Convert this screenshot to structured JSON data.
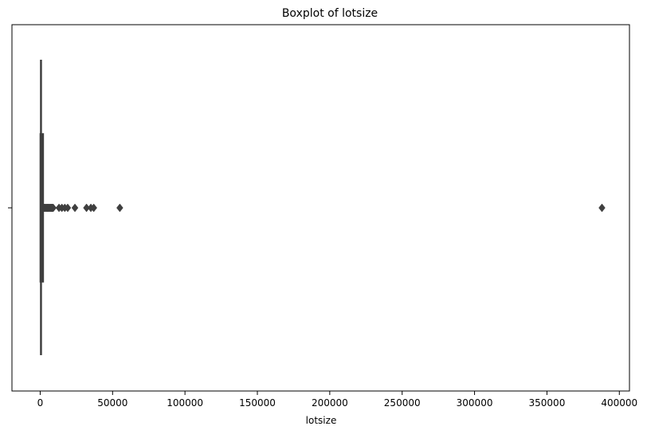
{
  "chart_data": {
    "type": "boxplot",
    "title": "Boxplot of lotsize",
    "xlabel": "lotsize",
    "ylabel": "",
    "xlim": [
      -19500,
      407000
    ],
    "x_ticks": [
      0,
      50000,
      100000,
      150000,
      200000,
      250000,
      300000,
      350000,
      400000
    ],
    "x_tick_labels": [
      "0",
      "50000",
      "100000",
      "150000",
      "200000",
      "250000",
      "300000",
      "350000",
      "400000"
    ],
    "y_tick_labels": [
      ""
    ],
    "grid": false,
    "box": {
      "whisker_low": 0,
      "q1": 0,
      "median": 500,
      "q3": 1500,
      "whisker_high": 1500
    },
    "outliers": [
      2000,
      2500,
      3000,
      3500,
      4000,
      4500,
      5000,
      5500,
      6000,
      6500,
      7000,
      7500,
      8000,
      8500,
      9000,
      13000,
      15000,
      17000,
      19000,
      24000,
      32000,
      35000,
      37000,
      55000,
      388000
    ],
    "colors": {
      "box_fill": "#3f3f3f",
      "box_edge": "#3f3f3f",
      "outlier": "#3f3f3f",
      "axes": "#000000"
    }
  }
}
